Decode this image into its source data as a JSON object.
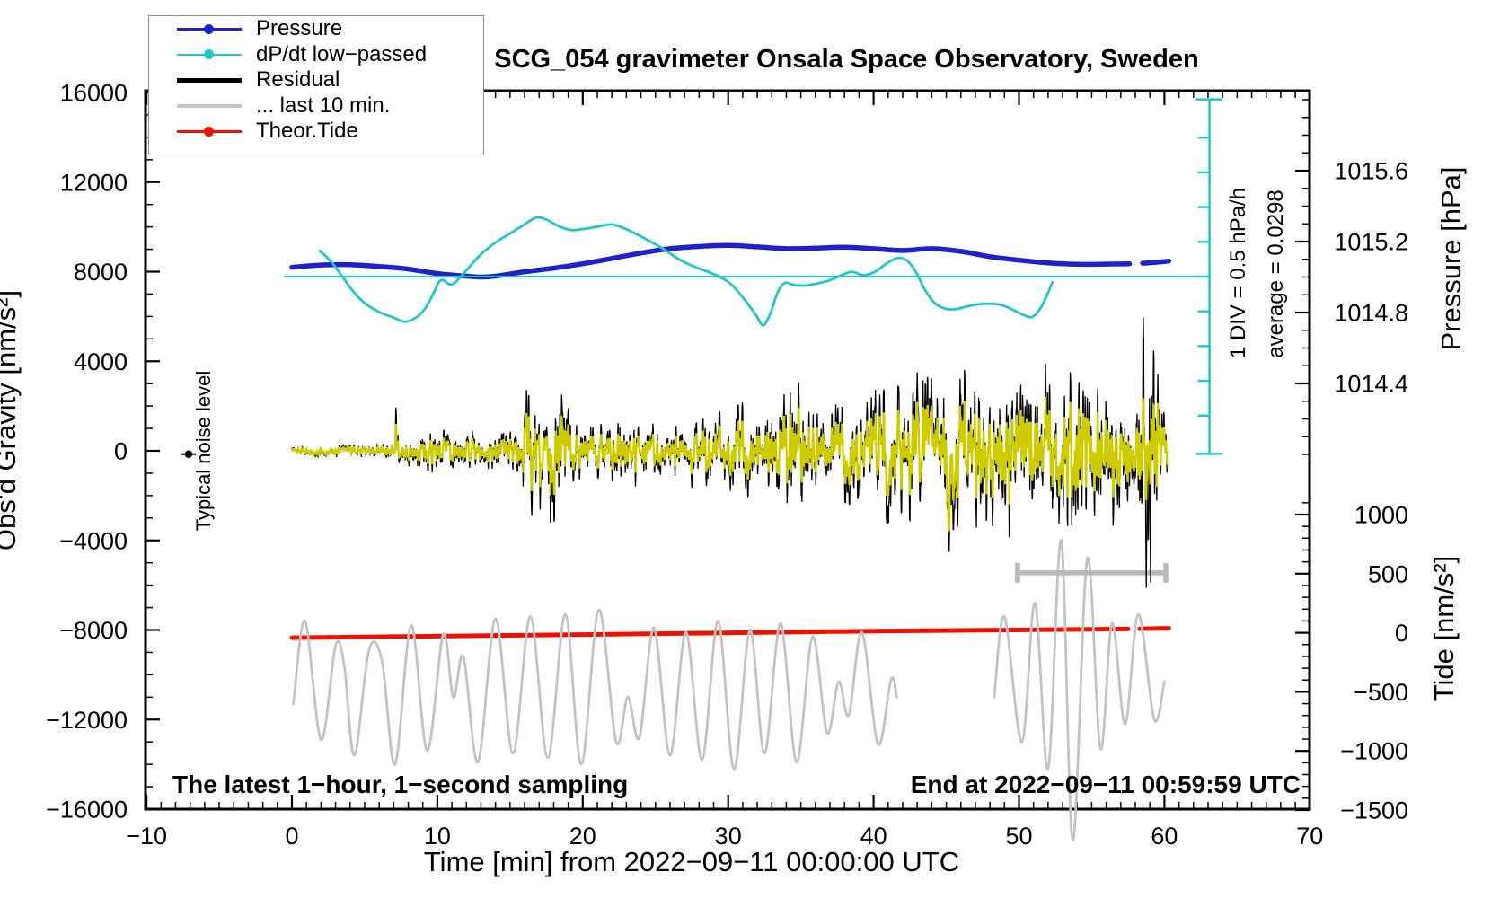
{
  "title": "SCG_054 gravimeter Onsala Space Observatory, Sweden",
  "legend": {
    "items": [
      {
        "label": "Pressure",
        "color": "#2121cc",
        "marker": true,
        "thickness": 2.5
      },
      {
        "label": "dP/dt low−passed",
        "color": "#21c7c7",
        "marker": true,
        "thickness": 2.5
      },
      {
        "label": "Residual",
        "color": "#000000",
        "marker": false,
        "thickness": 4.5
      },
      {
        "label": "... last 10 min.",
        "color": "#c3c3c3",
        "marker": false,
        "thickness": 4
      },
      {
        "label": "Theor.Tide",
        "color": "#ee1100",
        "marker": true,
        "thickness": 2.5
      }
    ]
  },
  "axes": {
    "x": {
      "title": "Time [min] from 2022−09−11 00:00:00 UTC",
      "min": -10,
      "max": 70,
      "major_ticks": [
        -10,
        0,
        10,
        20,
        30,
        40,
        50,
        60,
        70
      ],
      "minor_step": 1
    },
    "gravity": {
      "title": "Obs'd Gravity [nm/s²]",
      "min": -16000,
      "max": 16000,
      "major_ticks": [
        16000,
        12000,
        8000,
        4000,
        0,
        -4000,
        -8000,
        -12000,
        -16000
      ],
      "minor_step": 1000
    },
    "pressure": {
      "title": "Pressure [hPa]",
      "major_ticks": [
        1015.6,
        1015.2,
        1014.8,
        1014.4
      ],
      "minor_step": 0.1
    },
    "tide": {
      "title": "Tide [nm/s²]",
      "major_ticks": [
        1000,
        500,
        0,
        -500,
        -1000,
        -1500
      ],
      "minor_step": 100
    }
  },
  "annotations": {
    "noise_level": "Typical noise level",
    "ruler_label": "1 DIV = 0.5 hPa/h",
    "average_label": "average = 0.0298",
    "sampling_note": "The latest 1−hour, 1−second sampling",
    "end_note": "End at 2022−09−11 00:59:59 UTC"
  },
  "chart_data": {
    "type": "line",
    "description": "Multi-axis gravimeter monitoring plot: latest 1-hour 1-second sampling",
    "x_unit": "min",
    "series": [
      {
        "name": "Pressure",
        "axis": "pressure",
        "unit": "hPa",
        "color": "#2121cc",
        "width": 5.5,
        "smooth": true,
        "segments": [
          [
            [
              0,
              1015.055
            ],
            [
              2,
              1015.068
            ],
            [
              4,
              1015.07
            ],
            [
              6,
              1015.06
            ],
            [
              8,
              1015.045
            ],
            [
              10,
              1015.02
            ],
            [
              12,
              1015.005
            ],
            [
              13,
              1015.0
            ],
            [
              14,
              1015.005
            ],
            [
              16,
              1015.03
            ],
            [
              18,
              1015.05
            ],
            [
              20,
              1015.075
            ],
            [
              22,
              1015.105
            ],
            [
              24,
              1015.135
            ],
            [
              26,
              1015.16
            ],
            [
              28,
              1015.172
            ],
            [
              30,
              1015.178
            ],
            [
              32,
              1015.17
            ],
            [
              34,
              1015.16
            ],
            [
              36,
              1015.163
            ],
            [
              38,
              1015.168
            ],
            [
              40,
              1015.16
            ],
            [
              42,
              1015.15
            ],
            [
              44,
              1015.16
            ],
            [
              46,
              1015.145
            ],
            [
              48,
              1015.115
            ],
            [
              50,
              1015.095
            ],
            [
              52,
              1015.08
            ],
            [
              54,
              1015.072
            ],
            [
              56,
              1015.073
            ],
            [
              57.6,
              1015.075
            ]
          ],
          [
            [
              58.5,
              1015.078
            ],
            [
              59.3,
              1015.082
            ],
            [
              60.3,
              1015.09
            ]
          ]
        ]
      },
      {
        "name": "dP/dt low-passed",
        "axis": "dpdt",
        "unit": "hPa/h",
        "color": "#21c7c7",
        "width": 2.8,
        "smooth": true,
        "segments": [
          [
            [
              1.9,
              0.4
            ],
            [
              2.3,
              0.33
            ],
            [
              2.8,
              0.22
            ],
            [
              3.5,
              0.02
            ],
            [
              4.2,
              -0.18
            ],
            [
              5,
              -0.35
            ],
            [
              6,
              -0.48
            ],
            [
              7,
              -0.56
            ],
            [
              7.8,
              -0.62
            ],
            [
              8.6,
              -0.55
            ],
            [
              9.2,
              -0.42
            ],
            [
              9.8,
              -0.18
            ],
            [
              10.1,
              -0.05
            ],
            [
              10.4,
              -0.02
            ],
            [
              10.8,
              -0.08
            ],
            [
              11.2,
              -0.06
            ],
            [
              12,
              0.12
            ],
            [
              13,
              0.35
            ],
            [
              14,
              0.52
            ],
            [
              15,
              0.65
            ],
            [
              16,
              0.78
            ],
            [
              16.8,
              0.88
            ],
            [
              17.5,
              0.85
            ],
            [
              18.3,
              0.76
            ],
            [
              19.2,
              0.7
            ],
            [
              20.2,
              0.72
            ],
            [
              21.3,
              0.76
            ],
            [
              22,
              0.78
            ],
            [
              22.8,
              0.73
            ],
            [
              23.7,
              0.64
            ],
            [
              24.6,
              0.54
            ],
            [
              25.6,
              0.42
            ],
            [
              26.6,
              0.28
            ],
            [
              27.6,
              0.18
            ],
            [
              28.6,
              0.1
            ],
            [
              29.5,
              0.02
            ],
            [
              30.3,
              -0.1
            ],
            [
              31.2,
              -0.32
            ],
            [
              31.9,
              -0.52
            ],
            [
              32.4,
              -0.67
            ],
            [
              32.9,
              -0.5
            ],
            [
              33.4,
              -0.2
            ],
            [
              33.9,
              -0.06
            ],
            [
              34.5,
              -0.09
            ],
            [
              35.3,
              -0.1
            ],
            [
              36.1,
              -0.07
            ],
            [
              36.9,
              -0.03
            ],
            [
              37.7,
              0.04
            ],
            [
              38.5,
              0.1
            ],
            [
              39.3,
              0.05
            ],
            [
              40.1,
              0.1
            ],
            [
              40.9,
              0.22
            ],
            [
              41.7,
              0.3
            ],
            [
              42.3,
              0.26
            ],
            [
              42.9,
              0.1
            ],
            [
              43.5,
              -0.15
            ],
            [
              44.2,
              -0.35
            ],
            [
              44.9,
              -0.43
            ],
            [
              45.6,
              -0.44
            ],
            [
              46.4,
              -0.4
            ],
            [
              47.2,
              -0.37
            ],
            [
              48.0,
              -0.36
            ],
            [
              48.8,
              -0.38
            ],
            [
              49.6,
              -0.45
            ],
            [
              50.3,
              -0.52
            ],
            [
              50.9,
              -0.55
            ],
            [
              51.5,
              -0.42
            ],
            [
              52.0,
              -0.2
            ],
            [
              52.3,
              -0.05
            ]
          ]
        ]
      },
      {
        "name": "dP/dt average line",
        "axis": "dpdt",
        "unit": "hPa/h",
        "color": "#21c7c7",
        "width": 2,
        "smooth": false,
        "segments": [
          [
            [
              -0.5,
              0.0298
            ],
            [
              63.1,
              0.0298
            ]
          ]
        ]
      },
      {
        "name": "Theor.Tide",
        "axis": "tide",
        "unit": "nm/s2",
        "color": "#ee1100",
        "width": 5,
        "smooth": false,
        "segments": [
          [
            [
              0,
              -42
            ],
            [
              20,
              -15
            ],
            [
              40,
              14
            ],
            [
              57.5,
              32
            ]
          ],
          [
            [
              58.3,
              34
            ],
            [
              60.3,
              38
            ]
          ]
        ]
      },
      {
        "name": "... last 10 min. (raw gravity)",
        "axis": "gravity",
        "unit": "nm/s2",
        "color": "#c3c3c3",
        "width": 2.8,
        "smooth": true,
        "segments": [
          [
            [
              0.1,
              -11300
            ],
            [
              0.9,
              -7600
            ],
            [
              2.0,
              -12900
            ],
            [
              3.0,
              -8700
            ],
            [
              3.6,
              -9600
            ],
            [
              4.3,
              -13600
            ],
            [
              5.3,
              -8900
            ],
            [
              6.2,
              -9400
            ],
            [
              7.1,
              -14000
            ],
            [
              8.2,
              -7800
            ],
            [
              9.3,
              -13400
            ],
            [
              10.4,
              -8200
            ],
            [
              11.1,
              -11000
            ],
            [
              11.8,
              -9200
            ],
            [
              12.8,
              -13900
            ],
            [
              14.0,
              -7500
            ],
            [
              15.2,
              -13500
            ],
            [
              16.4,
              -7400
            ],
            [
              17.6,
              -13700
            ],
            [
              18.8,
              -7300
            ],
            [
              19.9,
              -14000
            ],
            [
              21.1,
              -7100
            ],
            [
              22.3,
              -13000
            ],
            [
              23.1,
              -11000
            ],
            [
              23.9,
              -12800
            ],
            [
              24.9,
              -7900
            ],
            [
              26.0,
              -13600
            ],
            [
              27.1,
              -8100
            ],
            [
              28.2,
              -13800
            ],
            [
              29.3,
              -7600
            ],
            [
              30.4,
              -14200
            ],
            [
              31.5,
              -8000
            ],
            [
              32.5,
              -13500
            ],
            [
              33.6,
              -7700
            ],
            [
              34.7,
              -13900
            ],
            [
              35.8,
              -8300
            ],
            [
              36.8,
              -12600
            ],
            [
              37.6,
              -10300
            ],
            [
              38.3,
              -11800
            ],
            [
              39.2,
              -8100
            ],
            [
              40.3,
              -13100
            ],
            [
              41.2,
              -10200
            ],
            [
              41.6,
              -11000
            ]
          ],
          [
            [
              48.3,
              -11000
            ],
            [
              49.0,
              -7400
            ],
            [
              50.2,
              -13000
            ],
            [
              51.1,
              -6800
            ],
            [
              52.0,
              -14200
            ],
            [
              52.9,
              -4000
            ],
            [
              53.7,
              -17400
            ],
            [
              54.7,
              -4800
            ],
            [
              55.6,
              -13300
            ],
            [
              56.4,
              -7700
            ],
            [
              57.3,
              -12200
            ],
            [
              58.2,
              -7300
            ],
            [
              59.3,
              -12000
            ],
            [
              60.0,
              -10300
            ]
          ]
        ]
      }
    ],
    "residual": {
      "name": "Residual",
      "axis": "gravity",
      "unit": "nm/s2",
      "color": "#000000",
      "width": 1.3,
      "sample_step_min": 0.025,
      "seed": 20220911,
      "envelope": [
        [
          0,
          150
        ],
        [
          3,
          220
        ],
        [
          6,
          260
        ],
        [
          6.9,
          300
        ],
        [
          7.15,
          1500
        ],
        [
          7.4,
          400
        ],
        [
          8.5,
          600
        ],
        [
          9.3,
          1100
        ],
        [
          9.8,
          1100
        ],
        [
          10.2,
          700
        ],
        [
          12,
          650
        ],
        [
          14,
          700
        ],
        [
          15.5,
          900
        ],
        [
          16.2,
          2300
        ],
        [
          17,
          1900
        ],
        [
          17.8,
          2400
        ],
        [
          18.6,
          2200
        ],
        [
          19.2,
          1200
        ],
        [
          20,
          900
        ],
        [
          21,
          900
        ],
        [
          22,
          1300
        ],
        [
          23,
          1300
        ],
        [
          24,
          1100
        ],
        [
          25,
          900
        ],
        [
          26,
          1000
        ],
        [
          27,
          1100
        ],
        [
          28,
          1300
        ],
        [
          29,
          1200
        ],
        [
          30,
          1400
        ],
        [
          31,
          1600
        ],
        [
          32,
          1400
        ],
        [
          33,
          1700
        ],
        [
          34,
          1900
        ],
        [
          35,
          2300
        ],
        [
          36,
          1600
        ],
        [
          37,
          1500
        ],
        [
          38,
          1700
        ],
        [
          39,
          1900
        ],
        [
          40,
          2100
        ],
        [
          41,
          2400
        ],
        [
          42,
          2000
        ],
        [
          43,
          2600
        ],
        [
          44,
          2400
        ],
        [
          45,
          2600
        ],
        [
          46,
          2600
        ],
        [
          47,
          2900
        ],
        [
          48,
          2700
        ],
        [
          49,
          2900
        ],
        [
          50,
          3000
        ],
        [
          51,
          3000
        ],
        [
          52,
          2900
        ],
        [
          53,
          3100
        ],
        [
          54,
          3000
        ],
        [
          55,
          3200
        ],
        [
          56,
          2800
        ],
        [
          57,
          2300
        ],
        [
          57.8,
          2000
        ],
        [
          58.3,
          3500
        ],
        [
          58.7,
          5500
        ],
        [
          59.1,
          5800
        ],
        [
          59.4,
          3000
        ],
        [
          59.8,
          1800
        ],
        [
          60.2,
          1200
        ]
      ],
      "spikes": [
        {
          "t": 45.15,
          "v": -5300
        },
        {
          "t": 58.55,
          "v": 6600
        },
        {
          "t": 58.9,
          "v": -5400
        },
        {
          "t": 59.05,
          "v": -6500
        }
      ]
    },
    "residual_lowpassed_overlay": {
      "name": "Residual low-passed (yellow overlay)",
      "axis": "gravity",
      "unit": "nm/s2",
      "color": "#cccc00",
      "width": 2.2,
      "scale": 0.62,
      "max_amp": 2600,
      "cluster_amp": 2000,
      "spikes": [
        {
          "t": 45.15,
          "v": -4300
        },
        {
          "t": 58.55,
          "v": 2600
        },
        {
          "t": 59.0,
          "v": -2400
        }
      ]
    },
    "noise_marker": {
      "t": -7.1,
      "gravity": -150,
      "label": "Typical noise level"
    },
    "last10_scalebar": {
      "t_start": 49.9,
      "t_end": 60.1,
      "gravity": -5450,
      "color": "#b9b9b9"
    },
    "dpdt_ruler": {
      "t": 63.1,
      "center_value": 0.0298,
      "div_hpa_per_h": 0.5,
      "tick_divs": [
        -4,
        -3,
        -2,
        -1,
        0,
        1,
        2,
        3,
        4
      ],
      "cap_div": 5.1,
      "color": "#21c7c7"
    }
  }
}
